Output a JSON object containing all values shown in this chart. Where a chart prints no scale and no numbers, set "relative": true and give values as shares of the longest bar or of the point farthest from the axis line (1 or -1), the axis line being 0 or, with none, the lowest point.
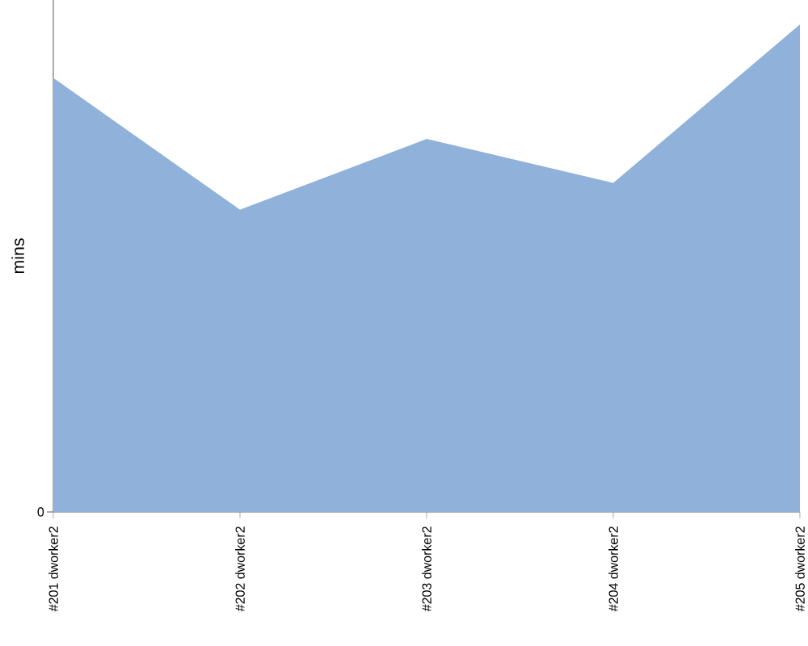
{
  "chart_data": {
    "type": "area",
    "ylabel": "mins",
    "annotations": [
      "0"
    ],
    "categories": [
      "#201 dworker2",
      "#202 dworker2",
      "#203 dworker2",
      "#204 dworker2",
      "#205 dworker2"
    ],
    "series": [
      {
        "color": "#8fb1da",
        "values": [
          0.89,
          0.62,
          0.765,
          0.675,
          1
        ]
      }
    ],
    "relative": true
  }
}
